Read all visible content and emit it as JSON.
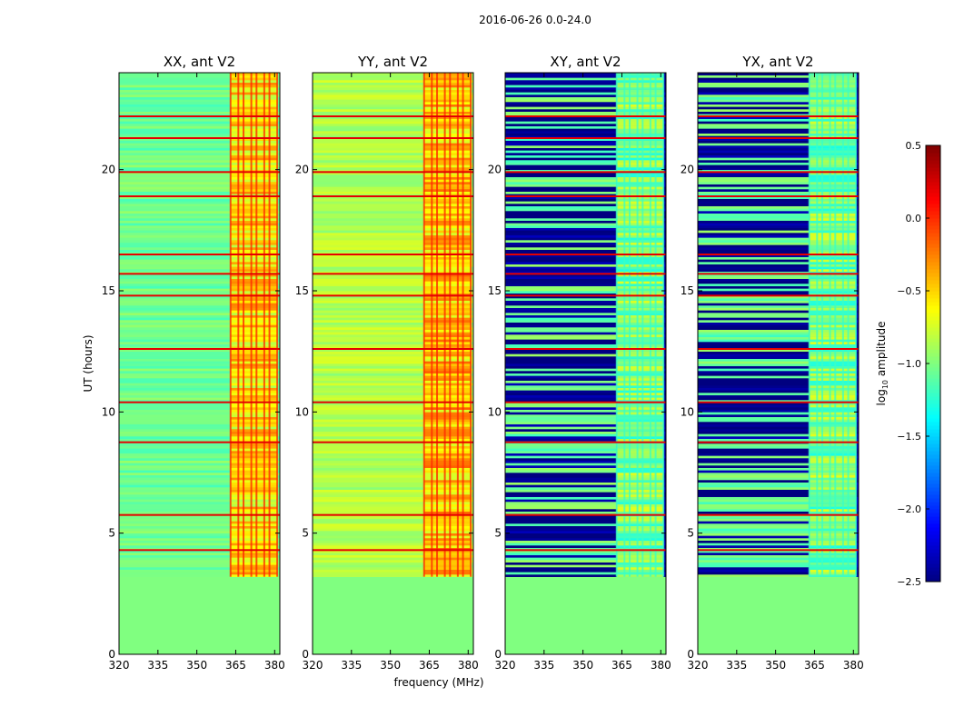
{
  "figure": {
    "title": "2016-06-26 0.0-24.0"
  },
  "chart_data": {
    "type": "heatmap",
    "title": "2016-06-26 0.0-24.0",
    "xlabel": "frequency (MHz)",
    "ylabel": "UT (hours)",
    "xlim": [
      320,
      382
    ],
    "ylim": [
      0,
      24
    ],
    "xticks": [
      320,
      335,
      350,
      365,
      380
    ],
    "yticks": [
      0,
      5,
      10,
      15,
      20
    ],
    "colorbar": {
      "label": "log10 amplitude",
      "label_main": "log",
      "label_sub": "10",
      "label_rest": " amplitude",
      "range": [
        -2.5,
        0.5
      ],
      "ticks": [
        -2.5,
        -2.0,
        -1.5,
        -1.0,
        -0.5,
        0.0,
        0.5
      ],
      "tick_labels": [
        "−2.5",
        "−2.0",
        "−1.5",
        "−1.0",
        "−0.5",
        "0.0",
        "0.5"
      ],
      "colormap": "jet"
    },
    "data_start_hour": 3.2,
    "fill_value": -1.0,
    "interference_band_mhz": [
      363,
      381
    ],
    "interference_channels_mhz": [
      363,
      366,
      368,
      371,
      373,
      376,
      378,
      381
    ],
    "strong_rfi_hours": [
      4.3,
      5.75,
      8.75,
      10.4,
      12.6,
      14.8,
      15.7,
      16.5,
      18.9,
      19.9,
      21.3,
      22.2
    ],
    "panels": [
      {
        "name": "XX, ant V2",
        "base_level": -1.05,
        "inband_level": -0.55,
        "kind": "parallel"
      },
      {
        "name": "YY, ant V2",
        "base_level": -0.85,
        "inband_level": -0.45,
        "kind": "parallel"
      },
      {
        "name": "XY, ant V2",
        "base_level": -2.35,
        "inband_level": -1.0,
        "kind": "cross"
      },
      {
        "name": "YX, ant V2",
        "base_level": -2.35,
        "inband_level": -1.0,
        "kind": "cross"
      }
    ]
  }
}
